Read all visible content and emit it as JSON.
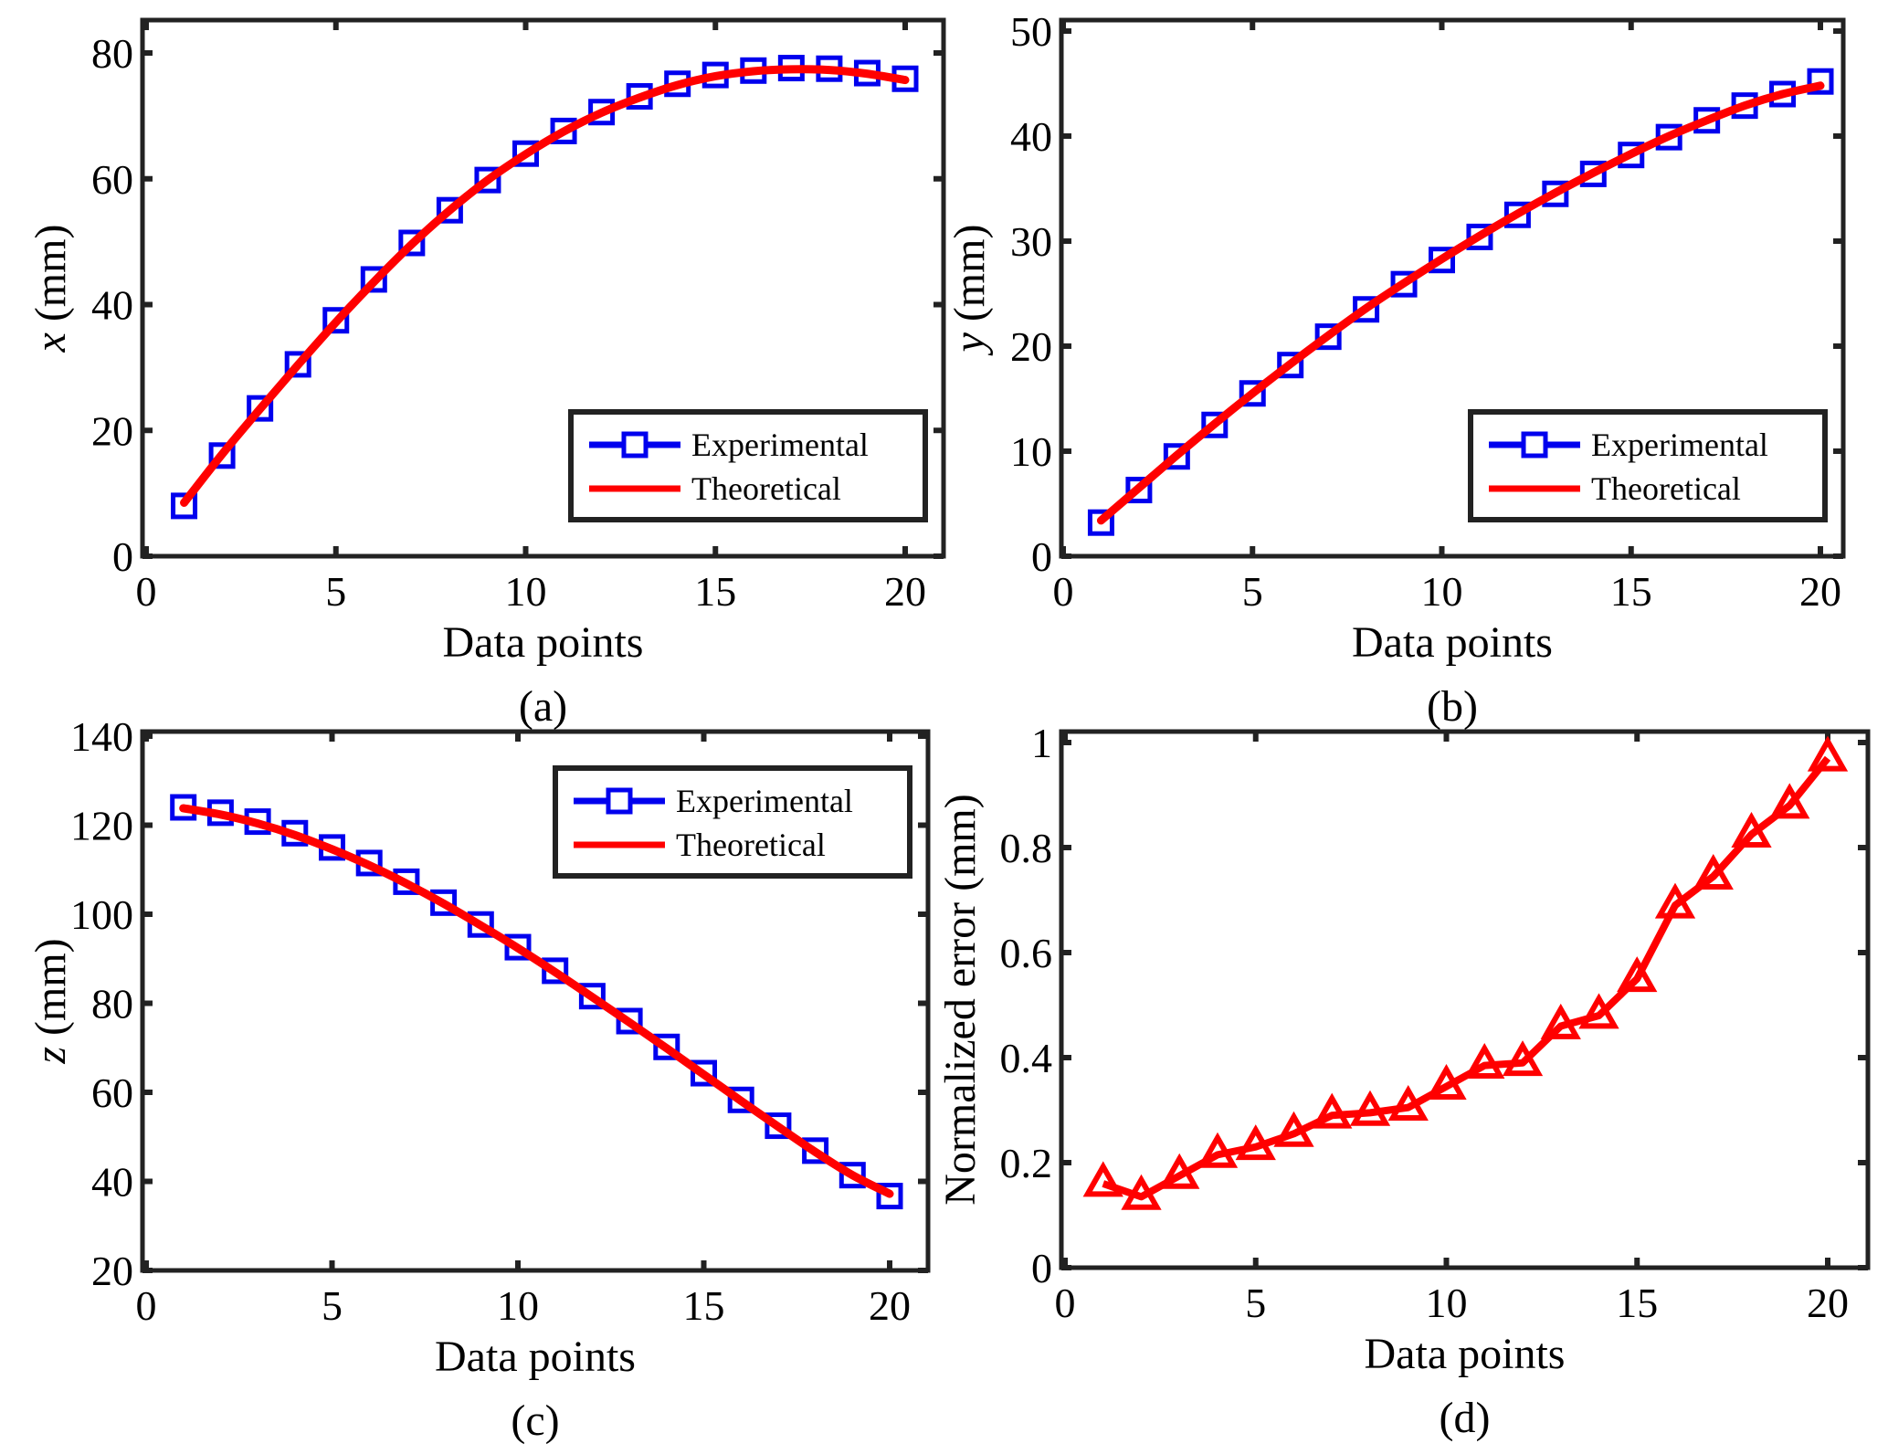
{
  "figure": {
    "colors": {
      "experimental": "#0000ee",
      "theoretical": "#ff0000",
      "axes": "#222222"
    }
  },
  "chart_data": [
    {
      "id": "a",
      "type": "line",
      "panel_label": "(a)",
      "xlabel": "Data  points",
      "ylabel_var": "x",
      "ylabel_unit": " (mm)",
      "xlim": [
        0,
        21
      ],
      "ylim": [
        0,
        85
      ],
      "xticks": [
        0,
        5,
        10,
        15,
        20
      ],
      "yticks": [
        0,
        20,
        40,
        60,
        80
      ],
      "ytick_labels": [
        "0",
        "20",
        "40",
        "60",
        "80"
      ],
      "legend": {
        "position": "bottom-right",
        "entries": [
          "Experimental",
          "Theoretical"
        ]
      },
      "x": [
        1,
        2,
        3,
        4,
        5,
        6,
        7,
        8,
        9,
        10,
        11,
        12,
        13,
        14,
        15,
        16,
        17,
        18,
        19,
        20
      ],
      "series": [
        {
          "name": "Experimental",
          "marker": "square",
          "values": [
            8.0,
            16.0,
            23.5,
            30.5,
            37.5,
            44.0,
            49.8,
            55.0,
            59.8,
            64.0,
            67.6,
            70.6,
            73.1,
            75.1,
            76.5,
            77.2,
            77.6,
            77.5,
            76.8,
            75.9
          ]
        },
        {
          "name": "Theoretical",
          "marker": "none",
          "values": [
            8.5,
            16.2,
            23.4,
            30.4,
            37.2,
            43.6,
            49.6,
            55.0,
            59.8,
            63.9,
            67.5,
            70.5,
            72.9,
            74.9,
            76.3,
            77.1,
            77.4,
            77.3,
            76.7,
            75.7
          ]
        }
      ]
    },
    {
      "id": "b",
      "type": "line",
      "panel_label": "(b)",
      "xlabel": "Data  points",
      "ylabel_var": "y",
      "ylabel_unit": " (mm)",
      "xlim": [
        0,
        21
      ],
      "ylim": [
        0,
        50
      ],
      "xticks": [
        0,
        5,
        10,
        15,
        20
      ],
      "yticks": [
        0,
        10,
        20,
        30,
        40,
        50
      ],
      "ytick_labels": [
        "0",
        "10",
        "20",
        "30",
        "40",
        "50"
      ],
      "legend": {
        "position": "bottom-right",
        "entries": [
          "Experimental",
          "Theoretical"
        ]
      },
      "x": [
        1,
        2,
        3,
        4,
        5,
        6,
        7,
        8,
        9,
        10,
        11,
        12,
        13,
        14,
        15,
        16,
        17,
        18,
        19,
        20
      ],
      "series": [
        {
          "name": "Experimental",
          "marker": "square",
          "values": [
            3.2,
            6.3,
            9.5,
            12.5,
            15.5,
            18.2,
            20.9,
            23.5,
            25.9,
            28.2,
            30.4,
            32.5,
            34.5,
            36.4,
            38.2,
            39.9,
            41.5,
            42.9,
            44.0,
            45.2
          ]
        },
        {
          "name": "Theoretical",
          "marker": "none",
          "values": [
            3.4,
            6.5,
            9.6,
            12.6,
            15.5,
            18.3,
            21.0,
            23.6,
            26.0,
            28.3,
            30.5,
            32.6,
            34.6,
            36.5,
            38.3,
            40.0,
            41.5,
            42.9,
            44.0,
            44.8
          ]
        }
      ]
    },
    {
      "id": "c",
      "type": "line",
      "panel_label": "(c)",
      "xlabel": "Data  points",
      "ylabel_var": "z",
      "ylabel_unit": " (mm)",
      "xlim": [
        0,
        21
      ],
      "ylim": [
        20,
        140
      ],
      "xticks": [
        0,
        5,
        10,
        15,
        20
      ],
      "yticks": [
        20,
        40,
        60,
        80,
        100,
        120,
        140
      ],
      "ytick_labels": [
        "20",
        "40",
        "60",
        "80",
        "100",
        "120",
        "140"
      ],
      "legend": {
        "position": "top-right",
        "entries": [
          "Experimental",
          "Theoretical"
        ]
      },
      "x": [
        1,
        2,
        3,
        4,
        5,
        6,
        7,
        8,
        9,
        10,
        11,
        12,
        13,
        14,
        15,
        16,
        17,
        18,
        19,
        20
      ],
      "series": [
        {
          "name": "Experimental",
          "marker": "square",
          "values": [
            124.0,
            122.8,
            120.8,
            118.2,
            115.0,
            111.5,
            107.3,
            102.6,
            97.7,
            92.6,
            87.3,
            81.6,
            76.0,
            70.2,
            64.3,
            58.3,
            52.5,
            46.9,
            41.4,
            36.7
          ]
        },
        {
          "name": "Theoretical",
          "marker": "none",
          "values": [
            123.8,
            122.4,
            120.4,
            117.8,
            114.6,
            111.0,
            106.9,
            102.4,
            97.5,
            92.4,
            87.0,
            81.4,
            75.7,
            69.9,
            64.0,
            58.1,
            52.3,
            46.6,
            41.4,
            37.2
          ]
        }
      ]
    },
    {
      "id": "d",
      "type": "line",
      "panel_label": "(d)",
      "xlabel": "Data  points",
      "ylabel_var": "",
      "ylabel_unit": "Normalized error (mm)",
      "xlim": [
        0,
        21
      ],
      "ylim": [
        0,
        1
      ],
      "xticks": [
        0,
        5,
        10,
        15,
        20
      ],
      "yticks": [
        0,
        0.2,
        0.4,
        0.6,
        0.8,
        1
      ],
      "ytick_labels": [
        "0",
        "0.2",
        "0.4",
        "0.6",
        "0.8",
        "1"
      ],
      "legend": null,
      "x": [
        1,
        2,
        3,
        4,
        5,
        6,
        7,
        8,
        9,
        10,
        11,
        12,
        13,
        14,
        15,
        16,
        17,
        18,
        19,
        20
      ],
      "series": [
        {
          "name": "Normalized error",
          "marker": "triangle",
          "values": [
            0.16,
            0.135,
            0.175,
            0.215,
            0.23,
            0.255,
            0.29,
            0.295,
            0.305,
            0.345,
            0.385,
            0.39,
            0.46,
            0.48,
            0.55,
            0.69,
            0.745,
            0.825,
            0.88,
            0.97
          ]
        }
      ]
    }
  ]
}
